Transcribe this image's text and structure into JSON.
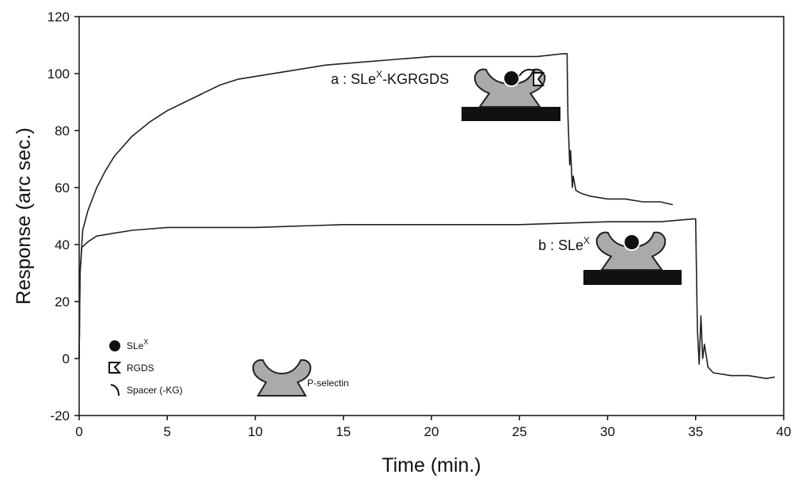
{
  "chart_data": {
    "type": "line",
    "xlabel": "Time (min.)",
    "ylabel": "Response (arc sec.)",
    "xlim": [
      0,
      40
    ],
    "ylim": [
      -20,
      120
    ],
    "xticks": [
      0,
      5,
      10,
      15,
      20,
      25,
      30,
      35,
      40
    ],
    "yticks": [
      -20,
      0,
      20,
      40,
      60,
      80,
      100,
      120
    ],
    "series": [
      {
        "color": "#222222",
        "x": [
          0,
          0.05,
          0.2,
          0.5,
          1,
          1.5,
          2,
          3,
          4,
          5,
          6,
          7,
          8,
          9,
          10,
          12,
          14,
          16,
          18,
          20,
          22,
          24,
          26,
          27.5,
          27.7,
          27.75,
          27.85,
          27.9,
          28.0,
          28.05,
          28.2,
          28.5,
          29,
          30,
          31,
          32,
          33,
          33.7
        ],
        "values": [
          0,
          30,
          45,
          52,
          60,
          66,
          71,
          78,
          83,
          87,
          90,
          93,
          96,
          98,
          99,
          101,
          103,
          104,
          105,
          106,
          106,
          106,
          106,
          107,
          107,
          85,
          68,
          73,
          60,
          64,
          59,
          58,
          57,
          56,
          56,
          55,
          55,
          54
        ]
      },
      {
        "color": "#222222",
        "x": [
          0,
          0.05,
          0.15,
          0.5,
          1,
          2,
          3,
          5,
          8,
          10,
          15,
          20,
          25,
          30,
          33,
          34.9,
          35.0,
          35.1,
          35.2,
          35.3,
          35.4,
          35.5,
          35.7,
          36,
          37,
          38,
          39,
          39.5
        ],
        "values": [
          0,
          30,
          39,
          41,
          43,
          44,
          45,
          46,
          46,
          46,
          47,
          47,
          47,
          48,
          48,
          49,
          49,
          10,
          -2,
          15,
          0,
          5,
          -3,
          -5,
          -6,
          -6,
          -7,
          -6.5
        ]
      }
    ],
    "annotations": [
      {
        "text": "a : SLe",
        "sup": "X",
        "after": "-KGRGDS"
      },
      {
        "text": "b : SLe",
        "sup": "X"
      }
    ],
    "legend_items": [
      {
        "text": "SLe",
        "sup": "X"
      },
      {
        "text": "RGDS"
      },
      {
        "text": "Spacer (-KG)"
      },
      {
        "text": "P-selectin"
      }
    ]
  }
}
